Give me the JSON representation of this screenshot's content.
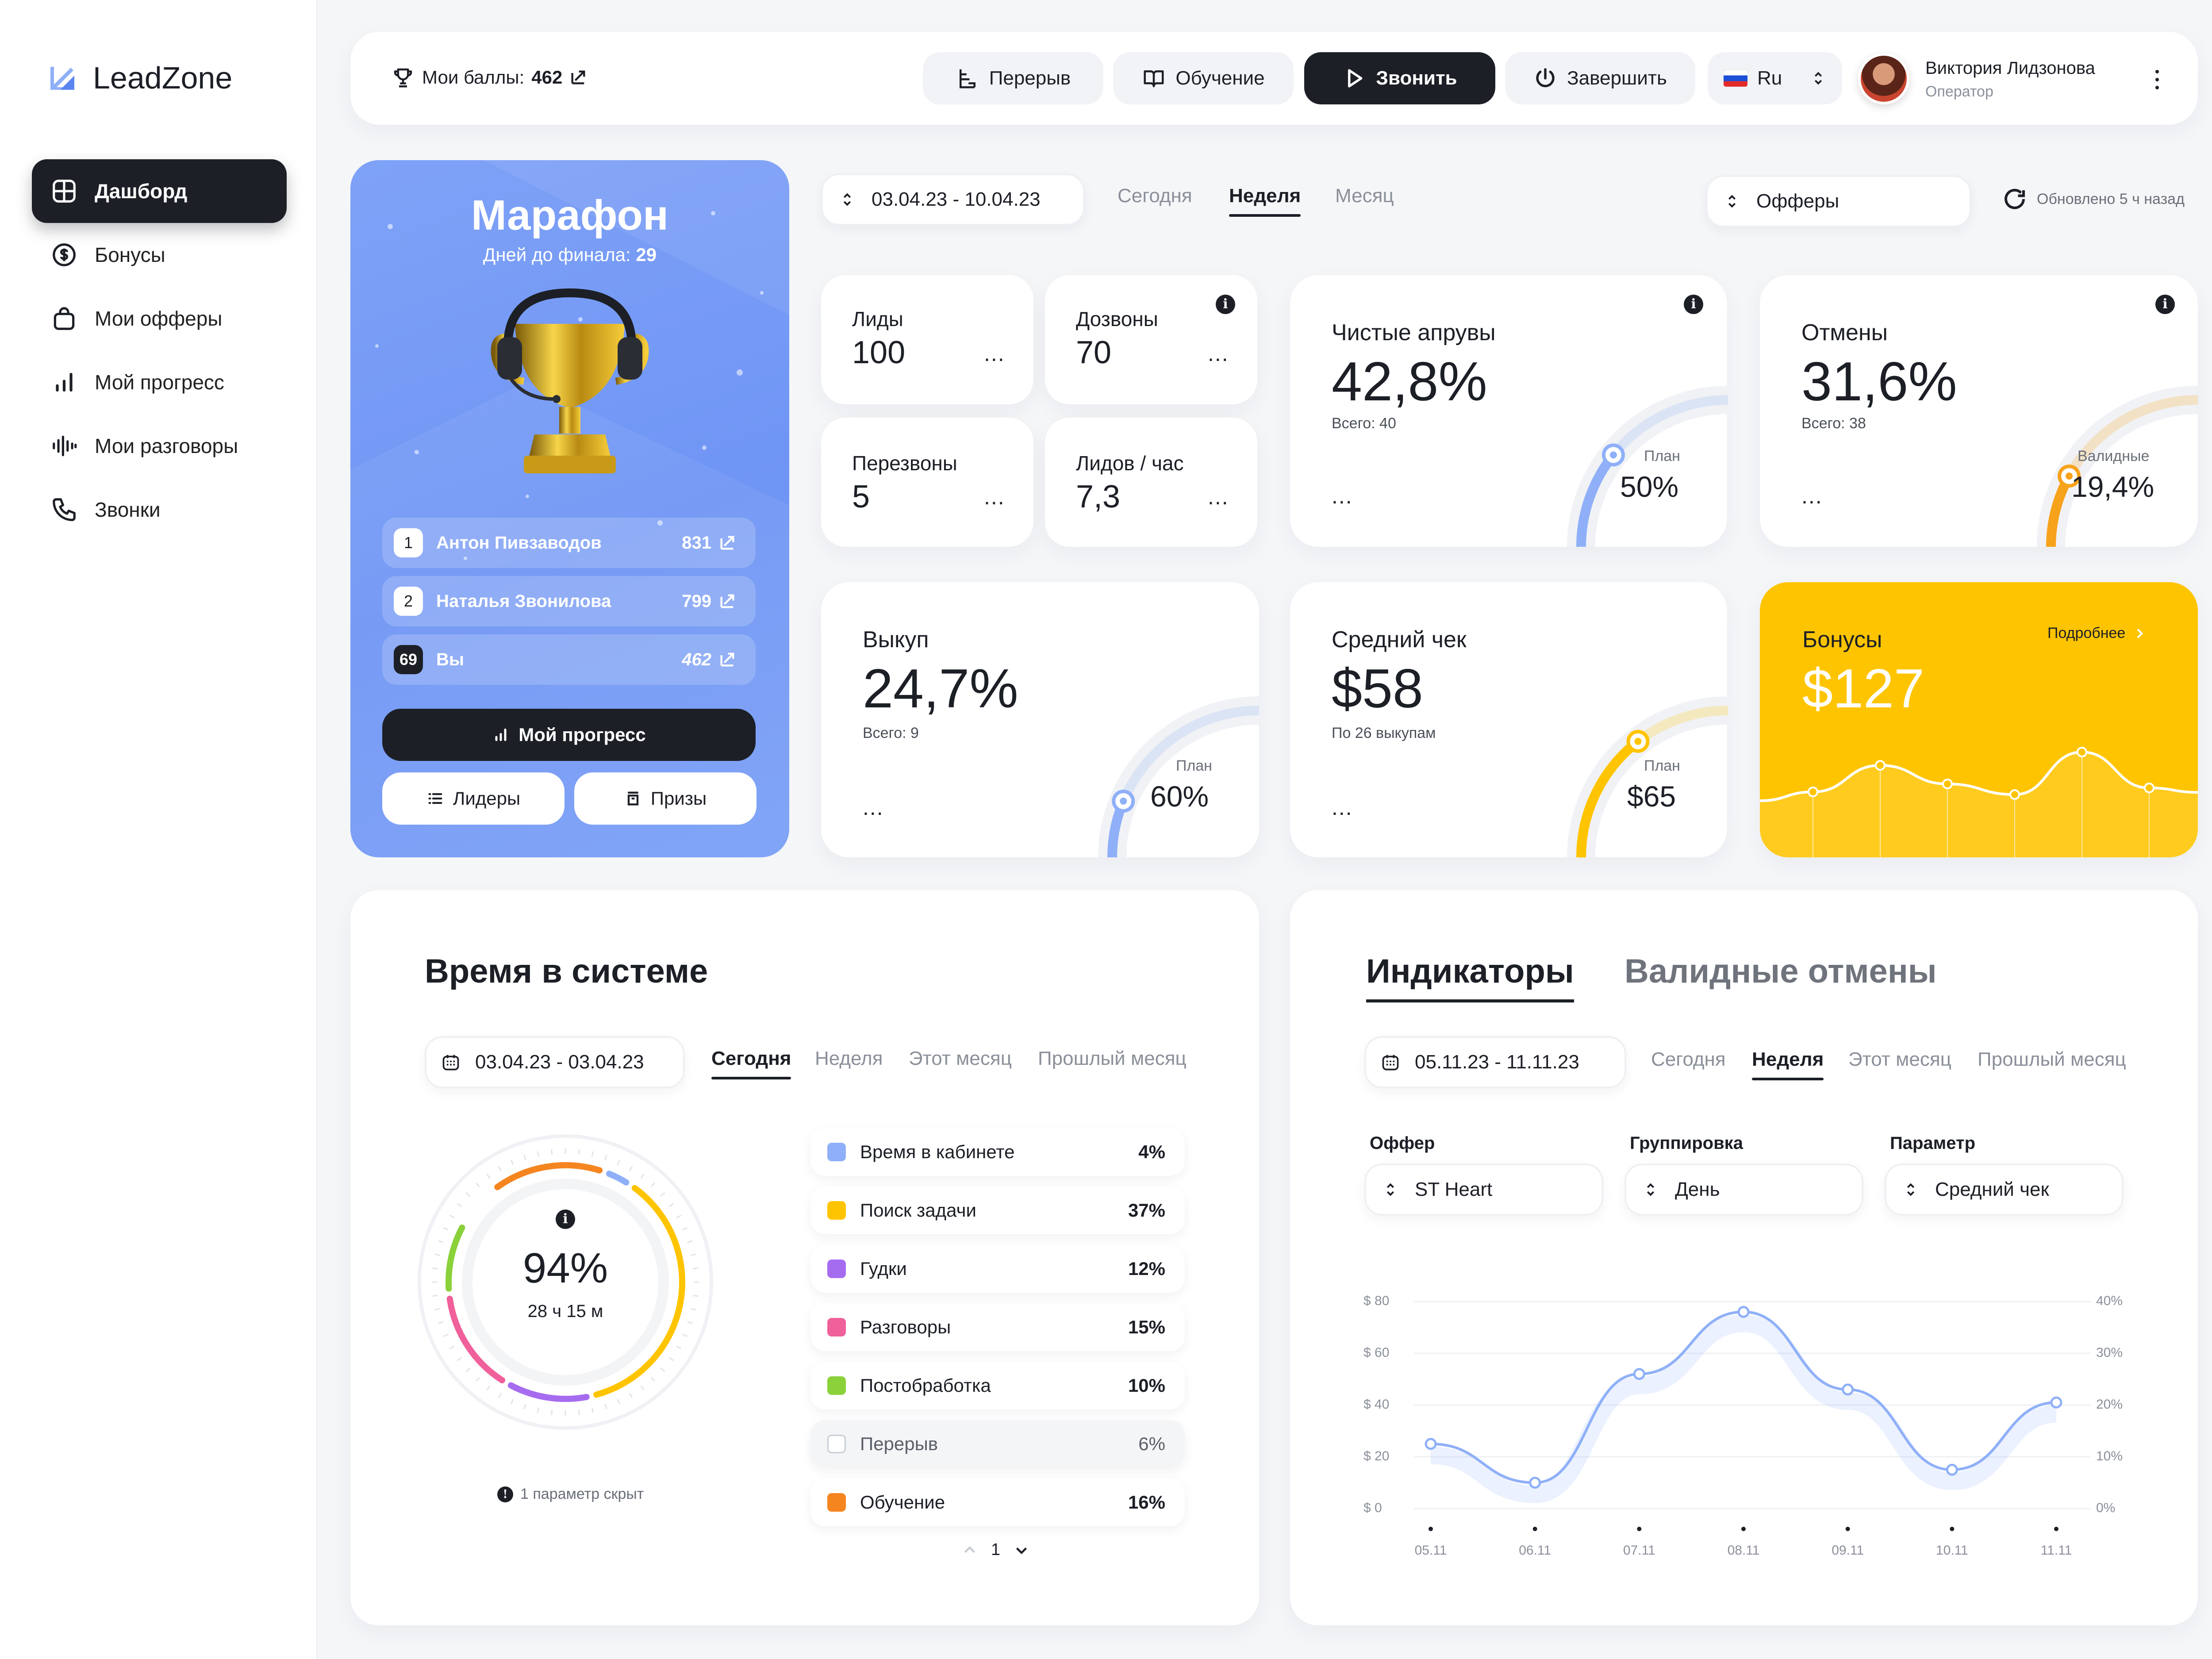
{
  "app": {
    "logo_text": "LeadZone"
  },
  "sidebar": {
    "items": [
      {
        "label": "Дашборд",
        "icon": "grid-icon",
        "active": true
      },
      {
        "label": "Бонусы",
        "icon": "dollar-coin-icon"
      },
      {
        "label": "Мои офферы",
        "icon": "bag-icon"
      },
      {
        "label": "Мой прогресс",
        "icon": "bar-chart-icon"
      },
      {
        "label": "Мои разговоры",
        "icon": "waveform-icon"
      },
      {
        "label": "Звонки",
        "icon": "phone-icon"
      }
    ]
  },
  "header": {
    "points_label": "Мои баллы:",
    "points_value": "462",
    "break_label": "Перерыв",
    "training_label": "Обучение",
    "call_label": "Звонить",
    "finish_label": "Завершить",
    "language": "Ru",
    "user_name": "Виктория Лидзонова",
    "user_role": "Оператор"
  },
  "filters": {
    "date_range": "03.04.23 - 10.04.23",
    "tabs": [
      "Сегодня",
      "Неделя",
      "Месяц"
    ],
    "active_tab": 1,
    "offers_label": "Офферы",
    "updated": "Обновлено 5 ч назад"
  },
  "marathon": {
    "title": "Марафон",
    "days_label": "Дней до финала:",
    "days_value": "29",
    "leaders": [
      {
        "rank": "1",
        "name": "Антон Пивзаводов",
        "score": "831"
      },
      {
        "rank": "2",
        "name": "Наталья Звонилова",
        "score": "799"
      },
      {
        "rank": "69",
        "name": "Вы",
        "score": "462"
      }
    ],
    "progress_button": "Мой прогресс",
    "leaders_button": "Лидеры",
    "prizes_button": "Призы"
  },
  "stats": {
    "leads": {
      "label": "Лиды",
      "value": "100"
    },
    "dials": {
      "label": "Дозвоны",
      "value": "70"
    },
    "recalls": {
      "label": "Перезвоны",
      "value": "5"
    },
    "leads_per_hour": {
      "label": "Лидов / час",
      "value": "7,3"
    },
    "more": "..."
  },
  "kpi": {
    "approvals": {
      "label": "Чистые апрувы",
      "value": "42,8%",
      "total": "Всего: 40",
      "plan_label": "План",
      "plan_value": "50%",
      "progress": 0.43,
      "color": "#8fb0f8"
    },
    "cancels": {
      "label": "Отмены",
      "value": "31,6%",
      "total": "Всего: 38",
      "plan_label": "Валидные",
      "plan_value": "19,4%",
      "progress": 0.32,
      "color": "#f7a21b"
    },
    "buyout": {
      "label": "Выкуп",
      "value": "24,7%",
      "total": "Всего: 9",
      "plan_label": "План",
      "plan_value": "60%",
      "progress": 0.25,
      "color": "#8fb0f8"
    },
    "avg_check": {
      "label": "Средний чек",
      "value": "$58",
      "total": "По 26 выкупам",
      "plan_label": "План",
      "plan_value": "$65",
      "progress": 0.58,
      "color": "#ffc400"
    }
  },
  "bonuses": {
    "label": "Бонусы",
    "more": "Подробнее",
    "value": "$127",
    "trend": [
      0.42,
      0.62,
      0.48,
      0.4,
      0.72,
      0.45
    ]
  },
  "system_time": {
    "title": "Время в системе",
    "date_range": "03.04.23 - 03.04.23",
    "tabs": [
      "Сегодня",
      "Неделя",
      "Этот месяц",
      "Прошлый месяц"
    ],
    "active_tab": 0,
    "total_pct": "94%",
    "total_time": "28 ч 15 м",
    "hidden_note": "1 параметр скрыт",
    "items": [
      {
        "name": "Время в кабинете",
        "pct": "4%",
        "value": 4,
        "color": "#8fb0f8",
        "enabled": true
      },
      {
        "name": "Поиск задачи",
        "pct": "37%",
        "value": 37,
        "color": "#ffc400",
        "enabled": true
      },
      {
        "name": "Гудки",
        "pct": "12%",
        "value": 12,
        "color": "#a66cf0",
        "enabled": true
      },
      {
        "name": "Разговоры",
        "pct": "15%",
        "value": 15,
        "color": "#f0609a",
        "enabled": true
      },
      {
        "name": "Постобработка",
        "pct": "10%",
        "value": 10,
        "color": "#8ad13a",
        "enabled": true
      },
      {
        "name": "Перерыв",
        "pct": "6%",
        "value": 6,
        "color": "#ffffff",
        "enabled": false
      },
      {
        "name": "Обучение",
        "pct": "16%",
        "value": 16,
        "color": "#f5851f",
        "enabled": true
      }
    ],
    "page": "1"
  },
  "indicators": {
    "tab_active": "Индикаторы",
    "tab_other": "Валидные отмены",
    "date_range": "05.11.23 - 11.11.23",
    "tabs": [
      "Сегодня",
      "Неделя",
      "Этот месяц",
      "Прошлый месяц"
    ],
    "active_tab": 1,
    "offer_label": "Оффер",
    "offer_value": "ST Heart",
    "group_label": "Группировка",
    "group_value": "День",
    "param_label": "Параметр",
    "param_value": "Средний чек"
  },
  "chart_data": {
    "type": "line",
    "x": [
      "05.11",
      "06.11",
      "07.11",
      "08.11",
      "09.11",
      "10.11",
      "11.11"
    ],
    "series": [
      {
        "values": [
          25,
          10,
          52,
          76,
          46,
          15,
          41
        ]
      }
    ],
    "y_left_ticks": [
      "$ 80",
      "$ 60",
      "$ 40",
      "$ 20",
      "$ 0"
    ],
    "y_right_ticks": [
      "40%",
      "30%",
      "20%",
      "10%",
      "0%"
    ],
    "ylim": [
      0,
      80
    ],
    "color": "#8fb0f8"
  }
}
